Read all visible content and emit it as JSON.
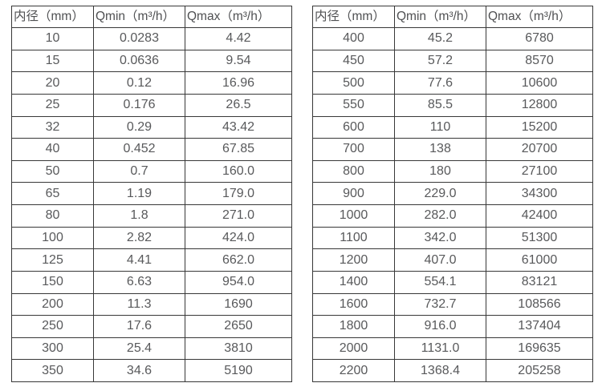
{
  "page": {
    "background_color": "#ffffff",
    "text_color": "#58595b",
    "border_color": "#383838"
  },
  "tables": [
    {
      "name": "flow-spec-small-diameters",
      "headers": [
        "内径（mm）",
        "Qmin（m³/h）",
        "Qmax（m³/h）"
      ],
      "rows": [
        [
          "10",
          "0.0283",
          "4.42"
        ],
        [
          "15",
          "0.0636",
          "9.54"
        ],
        [
          "20",
          "0.12",
          "16.96"
        ],
        [
          "25",
          "0.176",
          "26.5"
        ],
        [
          "32",
          "0.29",
          "43.42"
        ],
        [
          "40",
          "0.452",
          "67.85"
        ],
        [
          "50",
          "0.7",
          "160.0"
        ],
        [
          "65",
          "1.19",
          "179.0"
        ],
        [
          "80",
          "1.8",
          "271.0"
        ],
        [
          "100",
          "2.82",
          "424.0"
        ],
        [
          "125",
          "4.41",
          "662.0"
        ],
        [
          "150",
          "6.63",
          "954.0"
        ],
        [
          "200",
          "11.3",
          "1690"
        ],
        [
          "250",
          "17.6",
          "2650"
        ],
        [
          "300",
          "25.4",
          "3810"
        ],
        [
          "350",
          "34.6",
          "5190"
        ]
      ]
    },
    {
      "name": "flow-spec-large-diameters",
      "headers": [
        "内径（mm）",
        "Qmin（m³/h）",
        "Qmax（m³/h）"
      ],
      "rows": [
        [
          "400",
          "45.2",
          "6780"
        ],
        [
          "450",
          "57.2",
          "8570"
        ],
        [
          "500",
          "77.6",
          "10600"
        ],
        [
          "550",
          "85.5",
          "12800"
        ],
        [
          "600",
          "110",
          "15200"
        ],
        [
          "700",
          "138",
          "20700"
        ],
        [
          "800",
          "180",
          "27100"
        ],
        [
          "900",
          "229.0",
          "34300"
        ],
        [
          "1000",
          "282.0",
          "42400"
        ],
        [
          "1100",
          "342.0",
          "51300"
        ],
        [
          "1200",
          "407.0",
          "61000"
        ],
        [
          "1400",
          "554.1",
          "83121"
        ],
        [
          "1600",
          "732.7",
          "108566"
        ],
        [
          "1800",
          "916.0",
          "137404"
        ],
        [
          "2000",
          "1131.0",
          "169635"
        ],
        [
          "2200",
          "1368.4",
          "205258"
        ]
      ]
    }
  ]
}
